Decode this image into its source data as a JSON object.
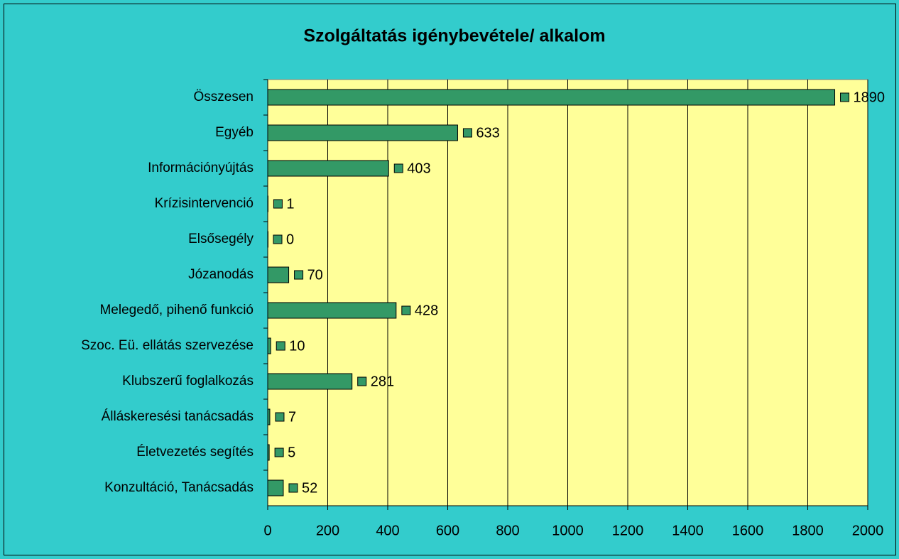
{
  "chart_data": {
    "type": "bar",
    "orientation": "horizontal",
    "title": "Szolgáltatás igénybevétele/ alkalom",
    "categories": [
      "Összesen",
      "Egyéb",
      "Információnyújtás",
      "Krízisintervenció",
      "Elsősegély",
      "Józanodás",
      "Melegedő, pihenő funkció",
      "Szoc. Eü. ellátás szervezése",
      "Klubszerű foglalkozás",
      "Álláskeresési tanácsadás",
      "Életvezetés segítés",
      "Konzultáció, Tanácsadás"
    ],
    "values": [
      1890,
      633,
      403,
      1,
      0,
      70,
      428,
      10,
      281,
      7,
      5,
      52
    ],
    "color": "#339966",
    "xlim": [
      0,
      2000
    ],
    "xticks": [
      0,
      200,
      400,
      600,
      800,
      1000,
      1200,
      1400,
      1600,
      1800,
      2000
    ],
    "grid": true
  }
}
